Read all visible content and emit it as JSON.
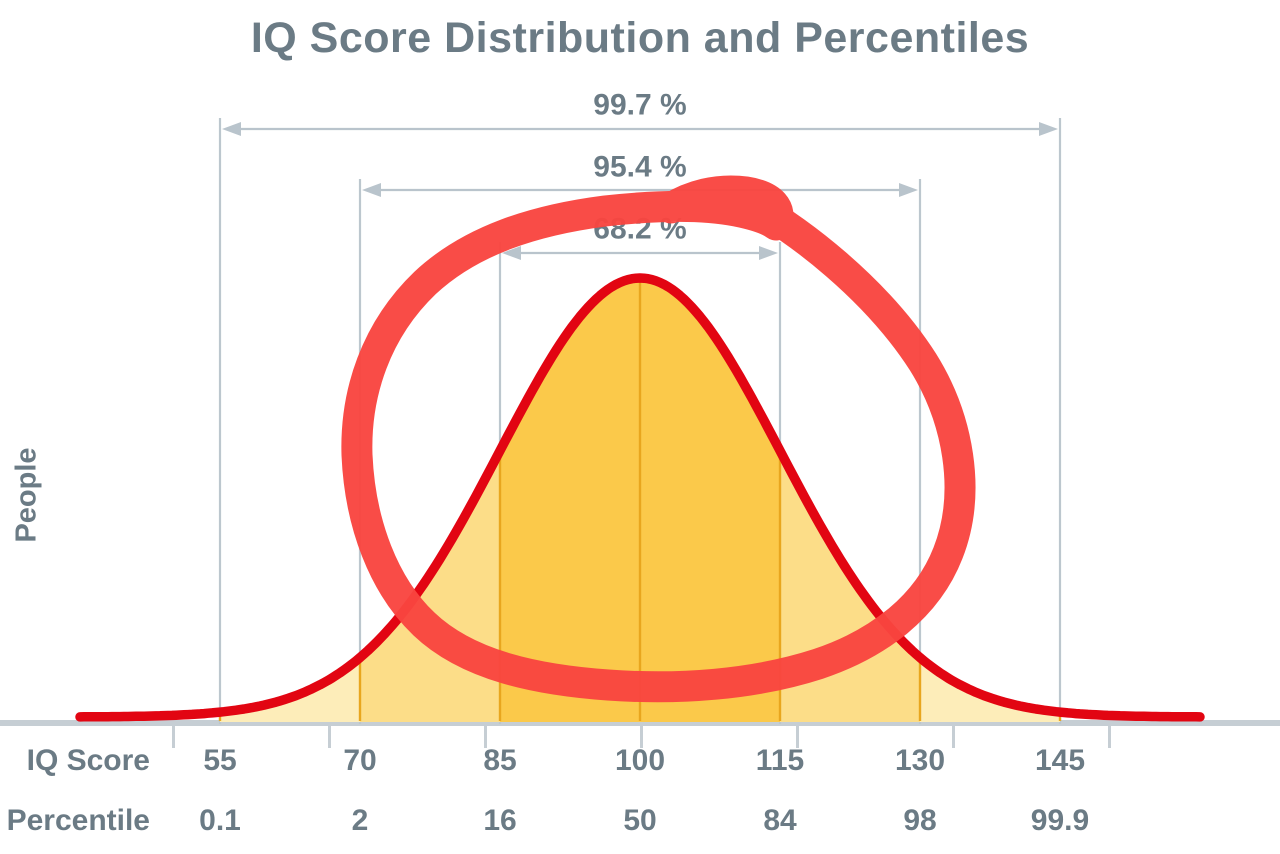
{
  "title": "IQ Score Distribution and Percentiles",
  "chart_data": {
    "type": "area",
    "title": "IQ Score Distribution and Percentiles",
    "ylabel": "People",
    "xlabel": "",
    "distribution": {
      "shape": "normal",
      "mean_iq": 100,
      "sd_iq": 15
    },
    "x_ticks_iq": [
      55,
      70,
      85,
      100,
      115,
      130,
      145
    ],
    "axis_rows": [
      {
        "label": "IQ Score",
        "values": [
          "55",
          "70",
          "85",
          "100",
          "115",
          "130",
          "145"
        ]
      },
      {
        "label": "Percentile",
        "values": [
          "0.1",
          "2",
          "16",
          "50",
          "84",
          "98",
          "99.9"
        ]
      }
    ],
    "brackets": [
      {
        "label": "99.7 %",
        "from_iq": 55,
        "to_iq": 145
      },
      {
        "label": "95.4 %",
        "from_iq": 70,
        "to_iq": 130
      },
      {
        "label": "68.2 %",
        "from_iq": 85,
        "to_iq": 115
      }
    ],
    "bands": [
      {
        "from_iq": 55,
        "to_iq": 70,
        "color": "#fdedb9"
      },
      {
        "from_iq": 70,
        "to_iq": 85,
        "color": "#fcdd88"
      },
      {
        "from_iq": 85,
        "to_iq": 115,
        "color": "#fbc94a"
      },
      {
        "from_iq": 115,
        "to_iq": 130,
        "color": "#fcdd88"
      },
      {
        "from_iq": 130,
        "to_iq": 145,
        "color": "#fdedb9"
      }
    ],
    "annotation": {
      "type": "freehand-circle",
      "color": "#f9453f",
      "description": "thick hand-drawn red circle around the central region of the bell curve"
    },
    "legend": "none",
    "grid": "sigma gridlines only"
  },
  "colors": {
    "text": "#6b7b85",
    "curve": "#e20512",
    "bracket": "#b9c4cc",
    "gridline": "#bcc7ce",
    "axis": "#c6ced4",
    "divider": "#e8a61e",
    "marker": "#f9453f",
    "background": "#ffffff"
  }
}
